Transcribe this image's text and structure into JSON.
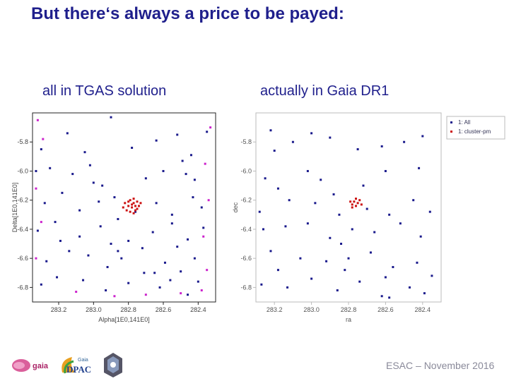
{
  "slide": {
    "title": "But there‘s always a price to be payed:",
    "left_caption": "all in TGAS solution",
    "right_caption": "actually in Gaia DR1",
    "footer": "ESAC – November 2016",
    "logos": {
      "gaia_text": "gaia",
      "dpac_small": "Gaia",
      "dpac_big": "DPAC"
    }
  },
  "colors": {
    "title": "#1f1f8c",
    "all": "#1a1a8c",
    "cluster": "#cc1111",
    "magenta": "#cc22cc"
  },
  "chart_data": [
    {
      "type": "scatter",
      "title": "",
      "xlabel": "Alpha[1E0,141E0]",
      "ylabel": "Delta[1E0,141E0]",
      "xlim": [
        283.35,
        282.3
      ],
      "ylim": [
        -6.9,
        -5.6
      ],
      "xticks": [
        283.2,
        283.0,
        282.8,
        282.6,
        282.4
      ],
      "xtick_labels": [
        "283.2",
        "283.0",
        "282.8",
        "282.6",
        "282.4"
      ],
      "yticks": [
        -5.8,
        -6.0,
        -6.2,
        -6.4,
        -6.6,
        -6.8
      ],
      "ytick_labels": [
        "-5.8",
        "-6.0",
        "-6.2",
        "-6.4",
        "-6.6",
        "-6.8"
      ],
      "series": [
        {
          "role": "all",
          "color": "#1a1a8c",
          "points": [
            [
              283.3,
              -5.85
            ],
            [
              283.15,
              -5.74
            ],
            [
              283.05,
              -5.87
            ],
            [
              282.9,
              -5.63
            ],
            [
              282.78,
              -5.84
            ],
            [
              282.64,
              -5.79
            ],
            [
              282.52,
              -5.75
            ],
            [
              282.44,
              -5.89
            ],
            [
              282.35,
              -5.73
            ],
            [
              283.33,
              -6.0
            ],
            [
              283.25,
              -5.98
            ],
            [
              283.12,
              -6.02
            ],
            [
              283.02,
              -5.96
            ],
            [
              282.95,
              -6.1
            ],
            [
              282.88,
              -6.18
            ],
            [
              282.7,
              -6.05
            ],
            [
              282.6,
              -6.0
            ],
            [
              282.49,
              -5.93
            ],
            [
              282.47,
              -6.02
            ],
            [
              282.42,
              -6.06
            ],
            [
              283.28,
              -6.22
            ],
            [
              283.18,
              -6.15
            ],
            [
              283.08,
              -6.27
            ],
            [
              282.97,
              -6.21
            ],
            [
              282.86,
              -6.33
            ],
            [
              282.76,
              -6.28
            ],
            [
              282.64,
              -6.22
            ],
            [
              282.55,
              -6.3
            ],
            [
              282.43,
              -6.18
            ],
            [
              282.38,
              -6.25
            ],
            [
              283.32,
              -6.41
            ],
            [
              283.22,
              -6.35
            ],
            [
              283.08,
              -6.45
            ],
            [
              282.96,
              -6.38
            ],
            [
              282.9,
              -6.5
            ],
            [
              282.8,
              -6.48
            ],
            [
              282.66,
              -6.42
            ],
            [
              282.55,
              -6.36
            ],
            [
              282.46,
              -6.47
            ],
            [
              282.37,
              -6.39
            ],
            [
              283.27,
              -6.62
            ],
            [
              283.14,
              -6.55
            ],
            [
              283.03,
              -6.58
            ],
            [
              282.92,
              -6.66
            ],
            [
              282.84,
              -6.6
            ],
            [
              282.72,
              -6.53
            ],
            [
              282.59,
              -6.63
            ],
            [
              282.5,
              -6.69
            ],
            [
              282.42,
              -6.6
            ],
            [
              283.3,
              -6.78
            ],
            [
              283.21,
              -6.73
            ],
            [
              283.06,
              -6.75
            ],
            [
              282.93,
              -6.82
            ],
            [
              282.8,
              -6.77
            ],
            [
              282.71,
              -6.7
            ],
            [
              282.62,
              -6.8
            ],
            [
              282.56,
              -6.75
            ],
            [
              282.46,
              -6.85
            ],
            [
              282.4,
              -6.76
            ],
            [
              283.0,
              -6.08
            ],
            [
              282.86,
              -6.55
            ],
            [
              282.52,
              -6.52
            ],
            [
              282.65,
              -6.7
            ],
            [
              283.19,
              -6.48
            ]
          ]
        },
        {
          "role": "cluster",
          "color": "#cc1111",
          "points": [
            [
              282.82,
              -6.22
            ],
            [
              282.8,
              -6.24
            ],
            [
              282.79,
              -6.2
            ],
            [
              282.78,
              -6.25
            ],
            [
              282.77,
              -6.22
            ],
            [
              282.76,
              -6.27
            ],
            [
              282.75,
              -6.21
            ],
            [
              282.74,
              -6.24
            ],
            [
              282.81,
              -6.27
            ],
            [
              282.79,
              -6.28
            ],
            [
              282.77,
              -6.19
            ],
            [
              282.76,
              -6.24
            ],
            [
              282.83,
              -6.25
            ],
            [
              282.78,
              -6.23
            ],
            [
              282.75,
              -6.26
            ],
            [
              282.8,
              -6.21
            ],
            [
              282.73,
              -6.22
            ],
            [
              282.77,
              -6.29
            ]
          ]
        },
        {
          "role": "edge",
          "color": "#cc22cc",
          "points": [
            [
              283.32,
              -5.65
            ],
            [
              283.29,
              -5.78
            ],
            [
              283.33,
              -6.12
            ],
            [
              283.3,
              -6.35
            ],
            [
              283.33,
              -6.6
            ],
            [
              282.33,
              -5.7
            ],
            [
              282.36,
              -5.95
            ],
            [
              282.34,
              -6.2
            ],
            [
              282.37,
              -6.45
            ],
            [
              282.35,
              -6.68
            ],
            [
              282.38,
              -6.82
            ],
            [
              283.1,
              -6.83
            ],
            [
              282.88,
              -6.86
            ],
            [
              282.7,
              -6.85
            ],
            [
              282.5,
              -6.84
            ]
          ]
        }
      ]
    },
    {
      "type": "scatter",
      "title": "",
      "xlabel": "ra",
      "ylabel": "dec",
      "xlim": [
        283.3,
        282.3
      ],
      "ylim": [
        -6.9,
        -5.6
      ],
      "xticks": [
        283.2,
        283.0,
        282.8,
        282.6,
        282.4
      ],
      "xtick_labels": [
        "283.2",
        "283.0",
        "282.8",
        "282.6",
        "282.4"
      ],
      "yticks": [
        -5.8,
        -6.0,
        -6.2,
        -6.4,
        -6.6,
        -6.8
      ],
      "ytick_labels": [
        "-5.8",
        "-6.0",
        "-6.2",
        "-6.4",
        "-6.6",
        "-6.8"
      ],
      "legend": {
        "position": "top-right",
        "items": [
          {
            "label": "1: All",
            "color": "#1a1a8c"
          },
          {
            "label": "1: cluster-pm",
            "color": "#cc1111"
          }
        ]
      },
      "series": [
        {
          "name": "1: All",
          "color": "#1a1a8c",
          "points": [
            [
              283.22,
              -5.72
            ],
            [
              283.2,
              -5.86
            ],
            [
              283.1,
              -5.8
            ],
            [
              283.0,
              -5.74
            ],
            [
              282.9,
              -5.77
            ],
            [
              282.75,
              -5.85
            ],
            [
              282.62,
              -5.83
            ],
            [
              282.5,
              -5.8
            ],
            [
              282.4,
              -5.76
            ],
            [
              283.25,
              -6.05
            ],
            [
              283.18,
              -6.12
            ],
            [
              283.02,
              -6.0
            ],
            [
              282.95,
              -6.06
            ],
            [
              282.88,
              -6.16
            ],
            [
              282.72,
              -6.1
            ],
            [
              282.6,
              -6.0
            ],
            [
              282.42,
              -5.98
            ],
            [
              283.28,
              -6.28
            ],
            [
              283.12,
              -6.2
            ],
            [
              282.98,
              -6.22
            ],
            [
              282.85,
              -6.3
            ],
            [
              282.7,
              -6.26
            ],
            [
              282.58,
              -6.3
            ],
            [
              282.45,
              -6.2
            ],
            [
              282.36,
              -6.28
            ],
            [
              283.26,
              -6.4
            ],
            [
              283.14,
              -6.38
            ],
            [
              283.02,
              -6.36
            ],
            [
              282.9,
              -6.46
            ],
            [
              282.78,
              -6.4
            ],
            [
              282.66,
              -6.42
            ],
            [
              282.52,
              -6.36
            ],
            [
              282.41,
              -6.45
            ],
            [
              283.22,
              -6.55
            ],
            [
              283.06,
              -6.6
            ],
            [
              282.92,
              -6.62
            ],
            [
              282.8,
              -6.6
            ],
            [
              282.68,
              -6.56
            ],
            [
              282.56,
              -6.66
            ],
            [
              282.43,
              -6.63
            ],
            [
              282.35,
              -6.72
            ],
            [
              283.27,
              -6.78
            ],
            [
              283.13,
              -6.8
            ],
            [
              283.0,
              -6.74
            ],
            [
              282.86,
              -6.82
            ],
            [
              282.74,
              -6.76
            ],
            [
              282.62,
              -6.86
            ],
            [
              282.58,
              -6.87
            ],
            [
              282.47,
              -6.8
            ],
            [
              282.39,
              -6.84
            ],
            [
              282.84,
              -6.5
            ],
            [
              282.6,
              -6.73
            ],
            [
              283.18,
              -6.68
            ],
            [
              282.82,
              -6.68
            ]
          ]
        },
        {
          "name": "1: cluster-pm",
          "color": "#cc1111",
          "points": [
            [
              282.79,
              -6.21
            ],
            [
              282.78,
              -6.23
            ],
            [
              282.77,
              -6.21
            ],
            [
              282.76,
              -6.24
            ],
            [
              282.75,
              -6.22
            ],
            [
              282.74,
              -6.2
            ],
            [
              282.73,
              -6.23
            ],
            [
              282.76,
              -6.19
            ],
            [
              282.78,
              -6.25
            ]
          ]
        }
      ]
    }
  ]
}
